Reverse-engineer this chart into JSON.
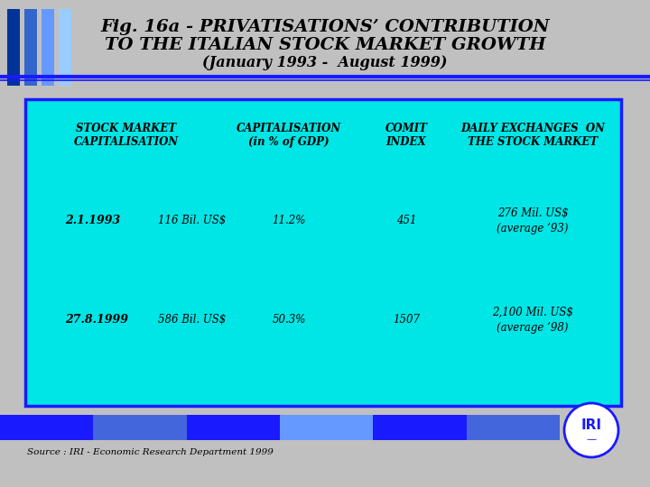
{
  "title_line1": "Fig. 16a - PRIVATISATIONS’ CONTRIBUTION",
  "title_line2": "TO THE ITALIAN STOCK MARKET GROWTH",
  "title_line3": "(January 1993 -  August 1999)",
  "bg_color": "#c0c0c0",
  "header_bg": "#c0c0c0",
  "table_bg": "#00e5e5",
  "table_border": "#1a1aff",
  "col_headers": [
    "STOCK MARKET\nCAPITALISATION",
    "CAPITALISATION\n(in % of GDP)",
    "COMIT\nINDEX",
    "DAILY EXCHANGES  ON\nTHE STOCK MARKET"
  ],
  "row1_date": "2.1.1993",
  "row1_cap": "116 Bil. US$",
  "row1_pct": "11.2%",
  "row1_comit": "451",
  "row1_daily": "276 Mil. US$\n(average ’93)",
  "row2_date": "27.8.1999",
  "row2_cap": "586 Bil. US$",
  "row2_pct": "50.3%",
  "row2_comit": "1507",
  "row2_daily": "2,100 Mil. US$\n(average ’98)",
  "source_text": "Source : IRI - Economic Research Department 1999",
  "blue_bar_color": "#1a1aff",
  "dark_blue": "#00008b",
  "title_color": "#000000",
  "stripe_colors": [
    "#1a3a8a",
    "#3a6aff",
    "#1a3a8a",
    "#6a9aff"
  ]
}
